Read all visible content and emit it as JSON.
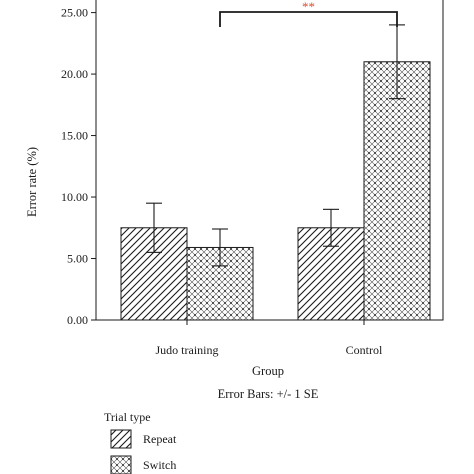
{
  "chart_data": {
    "type": "bar",
    "xlabel": "Group",
    "ylabel": "Error rate (%)",
    "footnote": "Error Bars: +/- 1 SE",
    "ylim": [
      0,
      27
    ],
    "yticks": [
      "0.00",
      "5.00",
      "10.00",
      "15.00",
      "20.00",
      "25.00"
    ],
    "ytick_values": [
      0,
      5,
      10,
      15,
      20,
      25
    ],
    "categories": [
      "Judo training",
      "Control"
    ],
    "series": [
      {
        "name": "Repeat",
        "values": [
          7.5,
          7.5
        ],
        "se": [
          2.0,
          1.5
        ],
        "pattern": "diagonal-hatch"
      },
      {
        "name": "Switch",
        "values": [
          5.9,
          21.0
        ],
        "se": [
          1.5,
          3.0
        ],
        "pattern": "crosshatch-dots"
      }
    ],
    "significance": {
      "label": "**",
      "color": "#e04b2a"
    },
    "legend": {
      "title": "Trial type",
      "position": "bottom-left"
    }
  }
}
